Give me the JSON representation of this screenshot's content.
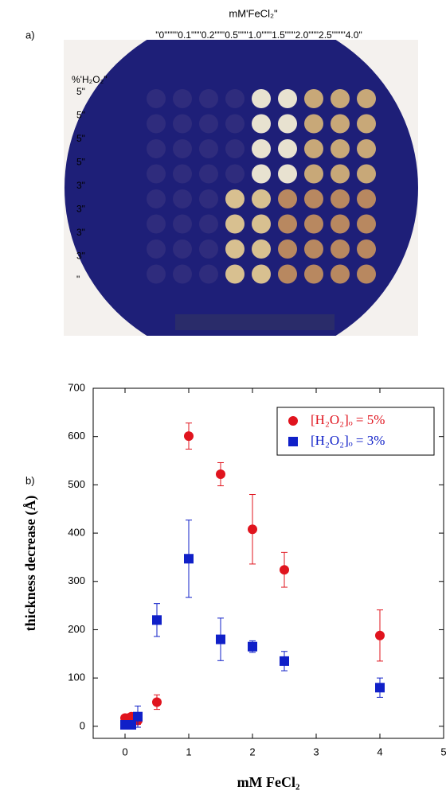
{
  "panel_a": {
    "label": "a)",
    "column_header": "mM'FeCl₂\"",
    "column_labels": "\"0\"\"\"\"0.1\"\"\"0.2\"\"\"0.5\"\"\"1.0\"\"\"1.5\"\"\"2.0\"\"\"2.5\"\"\"\"4.0\"",
    "row_header": "%'H₂O₂\"",
    "row_labels": [
      "5\"",
      "5\"",
      "5\"",
      "5\"",
      "3\"",
      "3\"",
      "3\"",
      "3\"",
      "\""
    ]
  },
  "chart_data": {
    "type": "scatter",
    "panel_label": "b)",
    "x_label": "mM FeCl₂",
    "y_label": "thickness decrease  (Å)",
    "xlim": [
      -0.5,
      5
    ],
    "ylim": [
      -25,
      700
    ],
    "xticks": [
      0,
      1,
      2,
      3,
      4,
      5
    ],
    "yticks": [
      0,
      100,
      200,
      300,
      400,
      500,
      600,
      700
    ],
    "legend": "upper right",
    "series": [
      {
        "name": "[H₂O₂]ₒ = 5%",
        "color": "#e0141e",
        "marker": "circle",
        "x": [
          0,
          0.05,
          0.1,
          0.2,
          0.5,
          1.0,
          1.5,
          2.0,
          2.5,
          4.0
        ],
        "values": [
          17,
          17,
          20,
          12,
          50,
          601,
          522,
          408,
          324,
          188
        ],
        "errors": [
          3,
          3,
          3,
          8,
          15,
          27,
          24,
          72,
          36,
          53
        ]
      },
      {
        "name": "[H₂O₂]ₒ = 3%",
        "color": "#1020c8",
        "marker": "square",
        "x": [
          0,
          0.05,
          0.1,
          0.2,
          0.5,
          1.0,
          1.5,
          2.0,
          2.5,
          4.0
        ],
        "values": [
          3,
          3,
          3,
          20,
          220,
          347,
          180,
          165,
          135,
          80
        ],
        "errors": [
          2,
          2,
          2,
          22,
          34,
          80,
          44,
          12,
          20,
          20
        ]
      }
    ]
  }
}
